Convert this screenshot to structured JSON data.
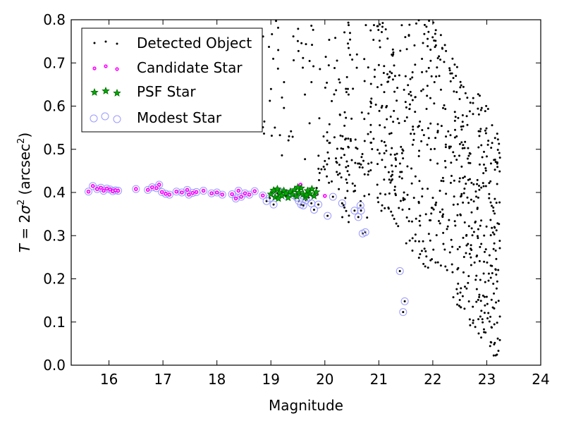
{
  "chart_data": {
    "type": "scatter",
    "xlabel": "Magnitude",
    "ylabel_prefix": "T = 2σ² (arcsec²)",
    "xlim": [
      15.3,
      24.0
    ],
    "ylim": [
      0.0,
      0.8
    ],
    "xticks": [
      "16",
      "17",
      "18",
      "19",
      "20",
      "21",
      "22",
      "23",
      "24"
    ],
    "yticks": [
      "0.0",
      "0.1",
      "0.2",
      "0.3",
      "0.4",
      "0.5",
      "0.6",
      "0.7",
      "0.8"
    ],
    "grid": false,
    "legend_position": "top-left",
    "series": [
      {
        "name": "Detected Object",
        "marker": "dot",
        "color": "#000000"
      },
      {
        "name": "Candidate Star",
        "marker": "circle",
        "color": "#ff00ff"
      },
      {
        "name": "PSF Star",
        "marker": "star",
        "color": "#008000"
      },
      {
        "name": "Modest Star",
        "marker": "open-circle",
        "color": "#8080ff"
      }
    ],
    "modest_stars": [
      [
        15.62,
        0.402
      ],
      [
        15.7,
        0.415
      ],
      [
        15.78,
        0.408
      ],
      [
        15.85,
        0.411
      ],
      [
        15.9,
        0.404
      ],
      [
        15.96,
        0.409
      ],
      [
        16.02,
        0.407
      ],
      [
        16.07,
        0.403
      ],
      [
        16.12,
        0.405
      ],
      [
        16.17,
        0.404
      ],
      [
        16.5,
        0.408
      ],
      [
        16.72,
        0.406
      ],
      [
        16.8,
        0.412
      ],
      [
        16.88,
        0.41
      ],
      [
        16.93,
        0.418
      ],
      [
        16.98,
        0.401
      ],
      [
        17.05,
        0.397
      ],
      [
        17.12,
        0.395
      ],
      [
        17.25,
        0.402
      ],
      [
        17.35,
        0.4
      ],
      [
        17.45,
        0.406
      ],
      [
        17.48,
        0.395
      ],
      [
        17.55,
        0.399
      ],
      [
        17.62,
        0.401
      ],
      [
        17.75,
        0.404
      ],
      [
        17.9,
        0.398
      ],
      [
        18.0,
        0.4
      ],
      [
        18.1,
        0.395
      ],
      [
        18.28,
        0.396
      ],
      [
        18.35,
        0.386
      ],
      [
        18.4,
        0.404
      ],
      [
        18.45,
        0.39
      ],
      [
        18.52,
        0.398
      ],
      [
        18.6,
        0.395
      ],
      [
        18.7,
        0.403
      ],
      [
        18.85,
        0.393
      ],
      [
        18.92,
        0.38
      ],
      [
        18.98,
        0.387
      ],
      [
        19.05,
        0.372
      ],
      [
        19.12,
        0.398
      ],
      [
        19.2,
        0.401
      ],
      [
        19.28,
        0.392
      ],
      [
        19.35,
        0.398
      ],
      [
        19.42,
        0.394
      ],
      [
        19.48,
        0.388
      ],
      [
        19.52,
        0.38
      ],
      [
        19.56,
        0.372
      ],
      [
        19.6,
        0.37
      ],
      [
        19.65,
        0.382
      ],
      [
        19.7,
        0.388
      ],
      [
        19.75,
        0.375
      ],
      [
        19.8,
        0.36
      ],
      [
        19.88,
        0.372
      ],
      [
        20.05,
        0.346
      ],
      [
        20.15,
        0.39
      ],
      [
        20.32,
        0.375
      ],
      [
        20.55,
        0.358
      ],
      [
        20.62,
        0.343
      ],
      [
        20.67,
        0.358
      ],
      [
        20.66,
        0.37
      ],
      [
        20.7,
        0.305
      ],
      [
        20.75,
        0.308
      ],
      [
        21.39,
        0.218
      ],
      [
        21.45,
        0.123
      ],
      [
        21.48,
        0.148
      ]
    ],
    "candidate_stars": [
      [
        15.62,
        0.402
      ],
      [
        15.7,
        0.415
      ],
      [
        15.78,
        0.408
      ],
      [
        15.85,
        0.411
      ],
      [
        15.9,
        0.404
      ],
      [
        15.96,
        0.409
      ],
      [
        16.02,
        0.407
      ],
      [
        16.07,
        0.403
      ],
      [
        16.12,
        0.405
      ],
      [
        16.17,
        0.404
      ],
      [
        16.5,
        0.408
      ],
      [
        16.72,
        0.406
      ],
      [
        16.8,
        0.412
      ],
      [
        16.88,
        0.41
      ],
      [
        16.93,
        0.418
      ],
      [
        16.98,
        0.401
      ],
      [
        17.05,
        0.397
      ],
      [
        17.12,
        0.395
      ],
      [
        17.25,
        0.402
      ],
      [
        17.35,
        0.4
      ],
      [
        17.45,
        0.406
      ],
      [
        17.48,
        0.395
      ],
      [
        17.55,
        0.399
      ],
      [
        17.62,
        0.401
      ],
      [
        17.75,
        0.404
      ],
      [
        17.9,
        0.398
      ],
      [
        18.0,
        0.4
      ],
      [
        18.1,
        0.395
      ],
      [
        18.28,
        0.396
      ],
      [
        18.35,
        0.386
      ],
      [
        18.4,
        0.404
      ],
      [
        18.45,
        0.39
      ],
      [
        18.52,
        0.398
      ],
      [
        18.6,
        0.395
      ],
      [
        18.7,
        0.403
      ],
      [
        18.85,
        0.393
      ],
      [
        19.55,
        0.418
      ],
      [
        19.68,
        0.402
      ],
      [
        19.85,
        0.396
      ],
      [
        20.0,
        0.392
      ]
    ],
    "psf_stars": [
      [
        19.0,
        0.396
      ],
      [
        19.05,
        0.405
      ],
      [
        19.08,
        0.389
      ],
      [
        19.12,
        0.408
      ],
      [
        19.16,
        0.399
      ],
      [
        19.2,
        0.393
      ],
      [
        19.24,
        0.404
      ],
      [
        19.28,
        0.398
      ],
      [
        19.32,
        0.388
      ],
      [
        19.36,
        0.402
      ],
      [
        19.4,
        0.395
      ],
      [
        19.44,
        0.406
      ],
      [
        19.48,
        0.391
      ],
      [
        19.52,
        0.4
      ],
      [
        19.56,
        0.41
      ],
      [
        19.6,
        0.396
      ],
      [
        19.64,
        0.389
      ],
      [
        19.68,
        0.404
      ],
      [
        19.72,
        0.397
      ],
      [
        19.76,
        0.408
      ],
      [
        19.8,
        0.392
      ],
      [
        19.84,
        0.401
      ],
      [
        19.14,
        0.386
      ],
      [
        19.5,
        0.412
      ],
      [
        19.66,
        0.394
      ]
    ]
  }
}
